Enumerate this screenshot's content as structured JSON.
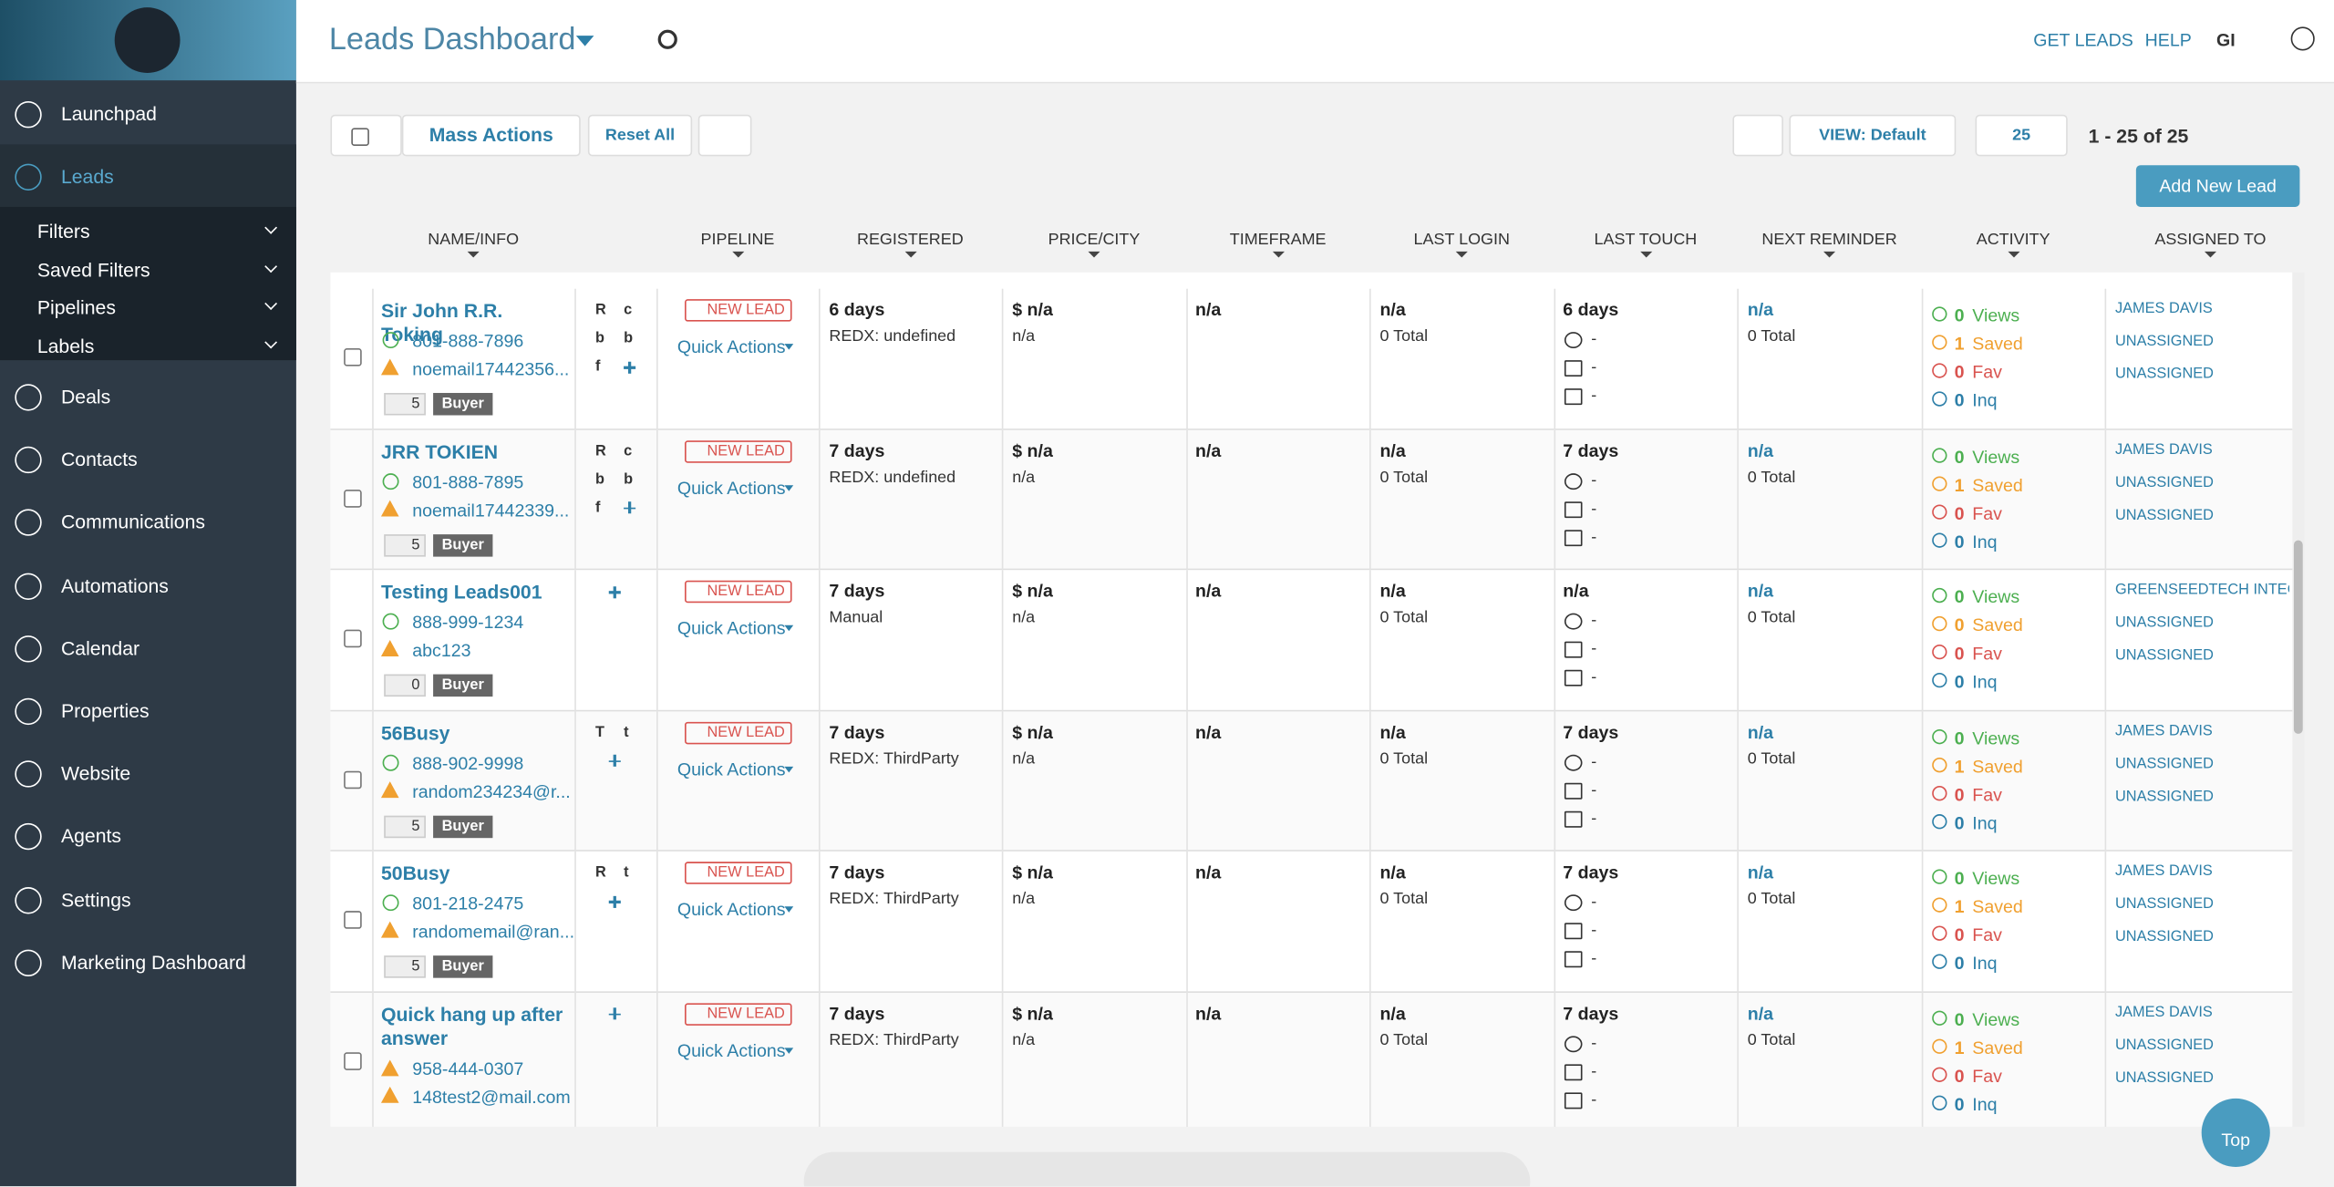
{
  "header": {
    "title": "Leads Dashboard",
    "links": [
      "GET LEADS",
      "HELP",
      "GI"
    ]
  },
  "sidebar": {
    "items": [
      "Launchpad",
      "Leads"
    ],
    "sub": [
      "Filters",
      "Saved Filters",
      "Pipelines",
      "Labels"
    ],
    "more": [
      "Deals",
      "Contacts",
      "Communications",
      "Automations",
      "Calendar",
      "Properties",
      "Website",
      "Agents",
      "Settings",
      "Marketing Dashboard"
    ]
  },
  "toolbar": {
    "mass": "Mass Actions",
    "reset": "Reset All",
    "view": "VIEW: Default",
    "per_page": "25",
    "range": "1 - 25 of 25",
    "add": "Add New Lead"
  },
  "labels": {
    "new_lead": "NEW LEAD",
    "quick": "Quick Actions",
    "dash": "-",
    "views": "Views",
    "saved": "Saved",
    "fav": "Fav",
    "inq": "Inq",
    "top": "Top"
  },
  "table": {
    "columns": [
      "NAME/INFO",
      "PIPELINE",
      "REGISTERED",
      "PRICE/CITY",
      "TIMEFRAME",
      "LAST LOGIN",
      "LAST TOUCH",
      "NEXT REMINDER",
      "ACTIVITY",
      "ASSIGNED TO"
    ],
    "rows": [
      {
        "name": "Sir John R.R. Toking",
        "phone": "801-888-7896",
        "phone_ok": true,
        "email": "noemail17442356...",
        "stars": 5,
        "tag": "Buyer",
        "letters": [
          "R",
          "c",
          "b",
          "b",
          "f"
        ],
        "registered": "6 days",
        "source": "REDX: undefined",
        "price": "$ n/a",
        "city": "n/a",
        "timeframe": "n/a",
        "login": "n/a",
        "login_total": "0 Total",
        "touch": "6 days",
        "reminder": "n/a",
        "reminder_total": "0 Total",
        "activity": [
          0,
          1,
          0,
          0
        ],
        "assigned": [
          "JAMES DAVIS",
          "UNASSIGNED",
          "UNASSIGNED"
        ]
      },
      {
        "name": "JRR TOKIEN",
        "phone": "801-888-7895",
        "phone_ok": true,
        "email": "noemail17442339...",
        "stars": 5,
        "tag": "Buyer",
        "letters": [
          "R",
          "c",
          "b",
          "b",
          "f"
        ],
        "registered": "7 days",
        "source": "REDX: undefined",
        "price": "$ n/a",
        "city": "n/a",
        "timeframe": "n/a",
        "login": "n/a",
        "login_total": "0 Total",
        "touch": "7 days",
        "reminder": "n/a",
        "reminder_total": "0 Total",
        "activity": [
          0,
          1,
          0,
          0
        ],
        "assigned": [
          "JAMES DAVIS",
          "UNASSIGNED",
          "UNASSIGNED"
        ]
      },
      {
        "name": "Testing Leads001",
        "phone": "888-999-1234",
        "phone_ok": true,
        "email": "abc123",
        "stars": 0,
        "tag": "Buyer",
        "letters": [],
        "registered": "7 days",
        "source": "Manual",
        "price": "$ n/a",
        "city": "n/a",
        "timeframe": "n/a",
        "login": "n/a",
        "login_total": "0 Total",
        "touch": "n/a",
        "reminder": "n/a",
        "reminder_total": "0 Total",
        "activity": [
          0,
          0,
          0,
          0
        ],
        "assigned": [
          "GREENSEEDTECH INTEG",
          "UNASSIGNED",
          "UNASSIGNED"
        ]
      },
      {
        "name": "56Busy",
        "phone": "888-902-9998",
        "phone_ok": true,
        "email": "random234234@r...",
        "stars": 5,
        "tag": "Buyer",
        "letters": [
          "T",
          "t"
        ],
        "registered": "7 days",
        "source": "REDX: ThirdParty",
        "price": "$ n/a",
        "city": "n/a",
        "timeframe": "n/a",
        "login": "n/a",
        "login_total": "0 Total",
        "touch": "7 days",
        "reminder": "n/a",
        "reminder_total": "0 Total",
        "activity": [
          0,
          1,
          0,
          0
        ],
        "assigned": [
          "JAMES DAVIS",
          "UNASSIGNED",
          "UNASSIGNED"
        ]
      },
      {
        "name": "50Busy",
        "phone": "801-218-2475",
        "phone_ok": true,
        "email": "randomemail@ran...",
        "stars": 5,
        "tag": "Buyer",
        "letters": [
          "R",
          "t"
        ],
        "registered": "7 days",
        "source": "REDX: ThirdParty",
        "price": "$ n/a",
        "city": "n/a",
        "timeframe": "n/a",
        "login": "n/a",
        "login_total": "0 Total",
        "touch": "7 days",
        "reminder": "n/a",
        "reminder_total": "0 Total",
        "activity": [
          0,
          1,
          0,
          0
        ],
        "assigned": [
          "JAMES DAVIS",
          "UNASSIGNED",
          "UNASSIGNED"
        ]
      },
      {
        "name": "Quick hang up after answer",
        "phone": "958-444-0307",
        "phone_ok": false,
        "email": "148test2@mail.com",
        "letters": [],
        "registered": "7 days",
        "source": "REDX: ThirdParty",
        "price": "$ n/a",
        "city": "n/a",
        "timeframe": "n/a",
        "login": "n/a",
        "login_total": "0 Total",
        "touch": "7 days",
        "reminder": "n/a",
        "reminder_total": "0 Total",
        "activity": [
          0,
          1,
          0,
          0
        ],
        "assigned": [
          "JAMES DAVIS",
          "UNASSIGNED",
          "UNASSIGNED"
        ]
      }
    ]
  }
}
